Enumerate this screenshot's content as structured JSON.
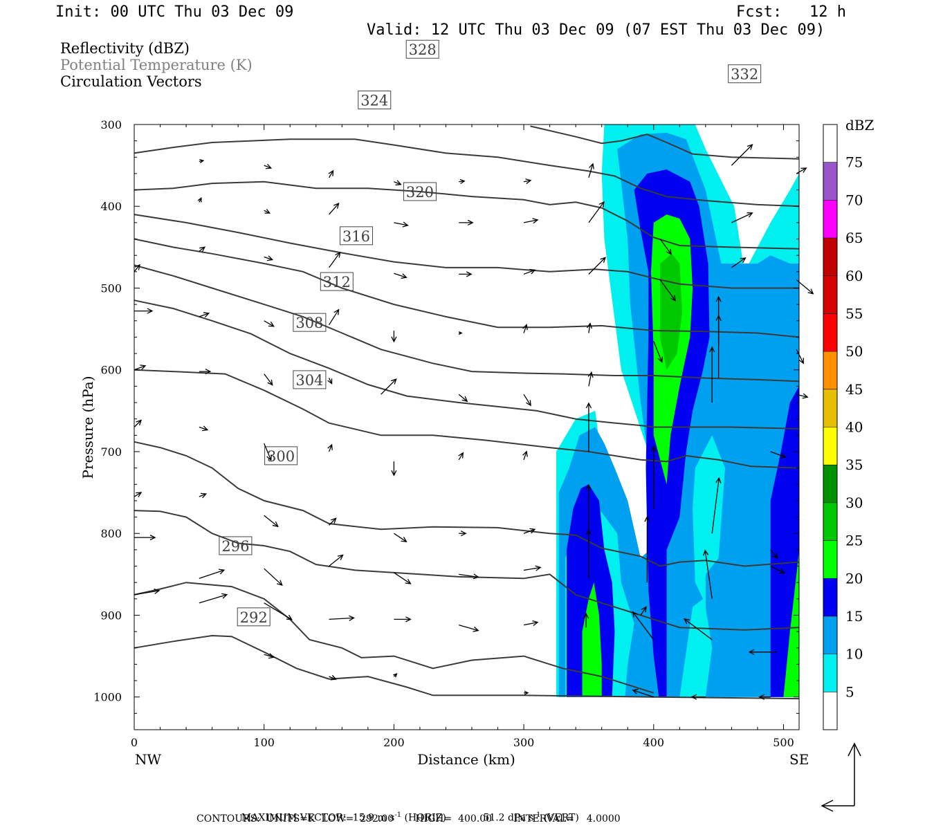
{
  "header": {
    "init": "Init: 00 UTC Thu 03 Dec 09",
    "fcst": "Fcst:   12 h",
    "valid": "Valid: 12 UTC Thu 03 Dec 09 (07 EST Thu 03 Dec 09)"
  },
  "legend_fields": [
    {
      "text": "Reflectivity (dBZ)",
      "color": "#000000"
    },
    {
      "text": "Potential Temperature (K)",
      "color": "#808080"
    },
    {
      "text": "Circulation Vectors",
      "color": "#000000"
    }
  ],
  "footer": {
    "max_vector_label": "MAXIMUM VECTOR:",
    "max_horiz": "15.9 m s",
    "max_horiz_unit": "(HORIZ)",
    "max_vert": "51.2 dPa s",
    "max_vert_unit": "(VERT)",
    "contours": "CONTOURS:  UNITS=K  LOW=  292.00       HIGH=  400.00       INTERVAL=    4.0000"
  },
  "chart_data": {
    "type": "contour-cross-section",
    "xlabel": "Distance (km)",
    "ylabel": "Pressure (hPa)",
    "x_ticks": [
      0,
      100,
      200,
      300,
      400,
      500
    ],
    "y_ticks": [
      300,
      400,
      500,
      600,
      700,
      800,
      900,
      1000
    ],
    "xlim": [
      0,
      512
    ],
    "ylim": [
      1040,
      300
    ],
    "x_end_labels": {
      "left": "NW",
      "right": "SE"
    },
    "colorbar": {
      "unit": "dBZ",
      "levels": [
        5,
        10,
        15,
        20,
        25,
        30,
        35,
        40,
        45,
        50,
        55,
        60,
        65,
        70,
        75
      ],
      "colors": [
        "#ffffff",
        "#00f0f0",
        "#00a0f0",
        "#0000f0",
        "#00ff00",
        "#00c800",
        "#009000",
        "#ffff00",
        "#e6c000",
        "#ff9000",
        "#ff0000",
        "#d60000",
        "#c00000",
        "#ff00ff",
        "#9955c9",
        "#ffffff"
      ]
    },
    "theta_contours": [
      {
        "label": "292",
        "lx": 92,
        "lp": 902,
        "points": [
          [
            0,
            940
          ],
          [
            30,
            932
          ],
          [
            60,
            925
          ],
          [
            75,
            926
          ],
          [
            100,
            945
          ],
          [
            125,
            965
          ],
          [
            150,
            978
          ],
          [
            180,
            975
          ],
          [
            210,
            988
          ],
          [
            230,
            998
          ],
          [
            300,
            998
          ],
          [
            400,
            1000
          ],
          [
            512,
            1002
          ]
        ]
      },
      {
        "label": "296",
        "lx": 78,
        "lp": 815,
        "points": [
          [
            0,
            875
          ],
          [
            20,
            868
          ],
          [
            40,
            860
          ],
          [
            75,
            865
          ],
          [
            100,
            880
          ],
          [
            120,
            905
          ],
          [
            135,
            930
          ],
          [
            160,
            940
          ],
          [
            175,
            952
          ],
          [
            200,
            950
          ],
          [
            230,
            965
          ],
          [
            260,
            955
          ],
          [
            300,
            950
          ],
          [
            330,
            965
          ],
          [
            360,
            975
          ],
          [
            400,
            995
          ]
        ]
      },
      {
        "label": "300",
        "lx": 113,
        "lp": 705,
        "points": [
          [
            0,
            772
          ],
          [
            20,
            773
          ],
          [
            40,
            780
          ],
          [
            60,
            800
          ],
          [
            80,
            812
          ],
          [
            100,
            815
          ],
          [
            120,
            822
          ],
          [
            140,
            838
          ],
          [
            170,
            845
          ],
          [
            220,
            850
          ],
          [
            250,
            853
          ],
          [
            300,
            855
          ],
          [
            320,
            850
          ],
          [
            340,
            875
          ],
          [
            360,
            885
          ],
          [
            380,
            895
          ],
          [
            400,
            905
          ],
          [
            420,
            915
          ],
          [
            470,
            918
          ],
          [
            512,
            915
          ]
        ]
      },
      {
        "label": "304",
        "lx": 135,
        "lp": 612,
        "points": [
          [
            0,
            688
          ],
          [
            20,
            695
          ],
          [
            40,
            705
          ],
          [
            60,
            720
          ],
          [
            80,
            745
          ],
          [
            100,
            760
          ],
          [
            130,
            772
          ],
          [
            150,
            788
          ],
          [
            190,
            795
          ],
          [
            230,
            792
          ],
          [
            280,
            793
          ],
          [
            320,
            800
          ],
          [
            340,
            802
          ],
          [
            360,
            818
          ],
          [
            390,
            828
          ],
          [
            405,
            840
          ],
          [
            420,
            835
          ],
          [
            440,
            833
          ],
          [
            470,
            840
          ],
          [
            512,
            835
          ]
        ]
      },
      {
        "label": "308",
        "lx": 135,
        "lp": 542,
        "points": [
          [
            0,
            600
          ],
          [
            30,
            602
          ],
          [
            70,
            605
          ],
          [
            100,
            625
          ],
          [
            130,
            648
          ],
          [
            150,
            665
          ],
          [
            190,
            680
          ],
          [
            230,
            680
          ],
          [
            270,
            686
          ],
          [
            320,
            695
          ],
          [
            350,
            700
          ],
          [
            390,
            710
          ],
          [
            410,
            712
          ],
          [
            425,
            705
          ],
          [
            450,
            710
          ],
          [
            475,
            718
          ],
          [
            512,
            720
          ]
        ]
      },
      {
        "label": "312",
        "lx": 156,
        "lp": 492,
        "points": [
          [
            0,
            515
          ],
          [
            30,
            525
          ],
          [
            60,
            540
          ],
          [
            90,
            556
          ],
          [
            120,
            580
          ],
          [
            150,
            598
          ],
          [
            180,
            618
          ],
          [
            210,
            632
          ],
          [
            250,
            640
          ],
          [
            280,
            645
          ],
          [
            310,
            650
          ],
          [
            340,
            660
          ],
          [
            370,
            665
          ],
          [
            390,
            668
          ],
          [
            400,
            670
          ],
          [
            430,
            670
          ],
          [
            460,
            670
          ],
          [
            512,
            672
          ]
        ]
      },
      {
        "label": "316",
        "lx": 171,
        "lp": 436,
        "points": [
          [
            0,
            472
          ],
          [
            30,
            485
          ],
          [
            60,
            500
          ],
          [
            100,
            520
          ],
          [
            130,
            535
          ],
          [
            160,
            555
          ],
          [
            190,
            575
          ],
          [
            230,
            592
          ],
          [
            260,
            602
          ],
          [
            300,
            604
          ],
          [
            330,
            605
          ],
          [
            370,
            607
          ],
          [
            400,
            607
          ],
          [
            440,
            610
          ],
          [
            480,
            612
          ],
          [
            512,
            614
          ]
        ]
      },
      {
        "label": "320",
        "lx": 220,
        "lp": 382,
        "points": [
          [
            0,
            440
          ],
          [
            30,
            450
          ],
          [
            60,
            458
          ],
          [
            100,
            470
          ],
          [
            130,
            480
          ],
          [
            160,
            500
          ],
          [
            200,
            520
          ],
          [
            240,
            535
          ],
          [
            280,
            548
          ],
          [
            320,
            548
          ],
          [
            360,
            546
          ],
          [
            400,
            552
          ],
          [
            440,
            553
          ],
          [
            480,
            555
          ],
          [
            512,
            560
          ]
        ]
      },
      {
        "label": "324",
        "lx": 185,
        "lp": 270,
        "points": [
          [
            0,
            410
          ],
          [
            40,
            420
          ],
          [
            80,
            432
          ],
          [
            120,
            445
          ],
          [
            160,
            457
          ],
          [
            200,
            468
          ],
          [
            240,
            475
          ],
          [
            280,
            475
          ],
          [
            320,
            480
          ],
          [
            355,
            477
          ],
          [
            380,
            480
          ],
          [
            400,
            488
          ],
          [
            420,
            495
          ],
          [
            460,
            500
          ],
          [
            512,
            500
          ]
        ]
      },
      {
        "label": "328",
        "lx": 222,
        "lp": 208,
        "points": [
          [
            0,
            380
          ],
          [
            30,
            378
          ],
          [
            60,
            372
          ],
          [
            100,
            370
          ],
          [
            140,
            378
          ],
          [
            180,
            378
          ],
          [
            220,
            382
          ],
          [
            260,
            388
          ],
          [
            300,
            392
          ],
          [
            320,
            398
          ],
          [
            340,
            395
          ],
          [
            360,
            402
          ],
          [
            380,
            418
          ],
          [
            400,
            438
          ],
          [
            420,
            448
          ],
          [
            460,
            450
          ],
          [
            512,
            452
          ]
        ]
      },
      {
        "label": "332",
        "lx": 470,
        "lp": 238,
        "points": [
          [
            0,
            335
          ],
          [
            30,
            328
          ],
          [
            60,
            322
          ],
          [
            120,
            318
          ],
          [
            170,
            318
          ],
          [
            200,
            325
          ],
          [
            240,
            335
          ],
          [
            280,
            340
          ],
          [
            320,
            350
          ],
          [
            350,
            357
          ],
          [
            370,
            363
          ],
          [
            390,
            378
          ],
          [
            410,
            388
          ],
          [
            440,
            393
          ],
          [
            480,
            398
          ],
          [
            512,
            400
          ]
        ]
      },
      {
        "label": "",
        "lx": -1,
        "lp": -1,
        "points": [
          [
            305,
            302
          ],
          [
            340,
            315
          ],
          [
            360,
            323
          ],
          [
            375,
            320
          ],
          [
            395,
            312
          ],
          [
            410,
            322
          ],
          [
            430,
            336
          ],
          [
            460,
            340
          ],
          [
            512,
            342
          ]
        ]
      }
    ],
    "vectors_note": "circulation vectors; reference: horizontal 15.9 m s-1, vertical 51.2 dPa s-1"
  }
}
